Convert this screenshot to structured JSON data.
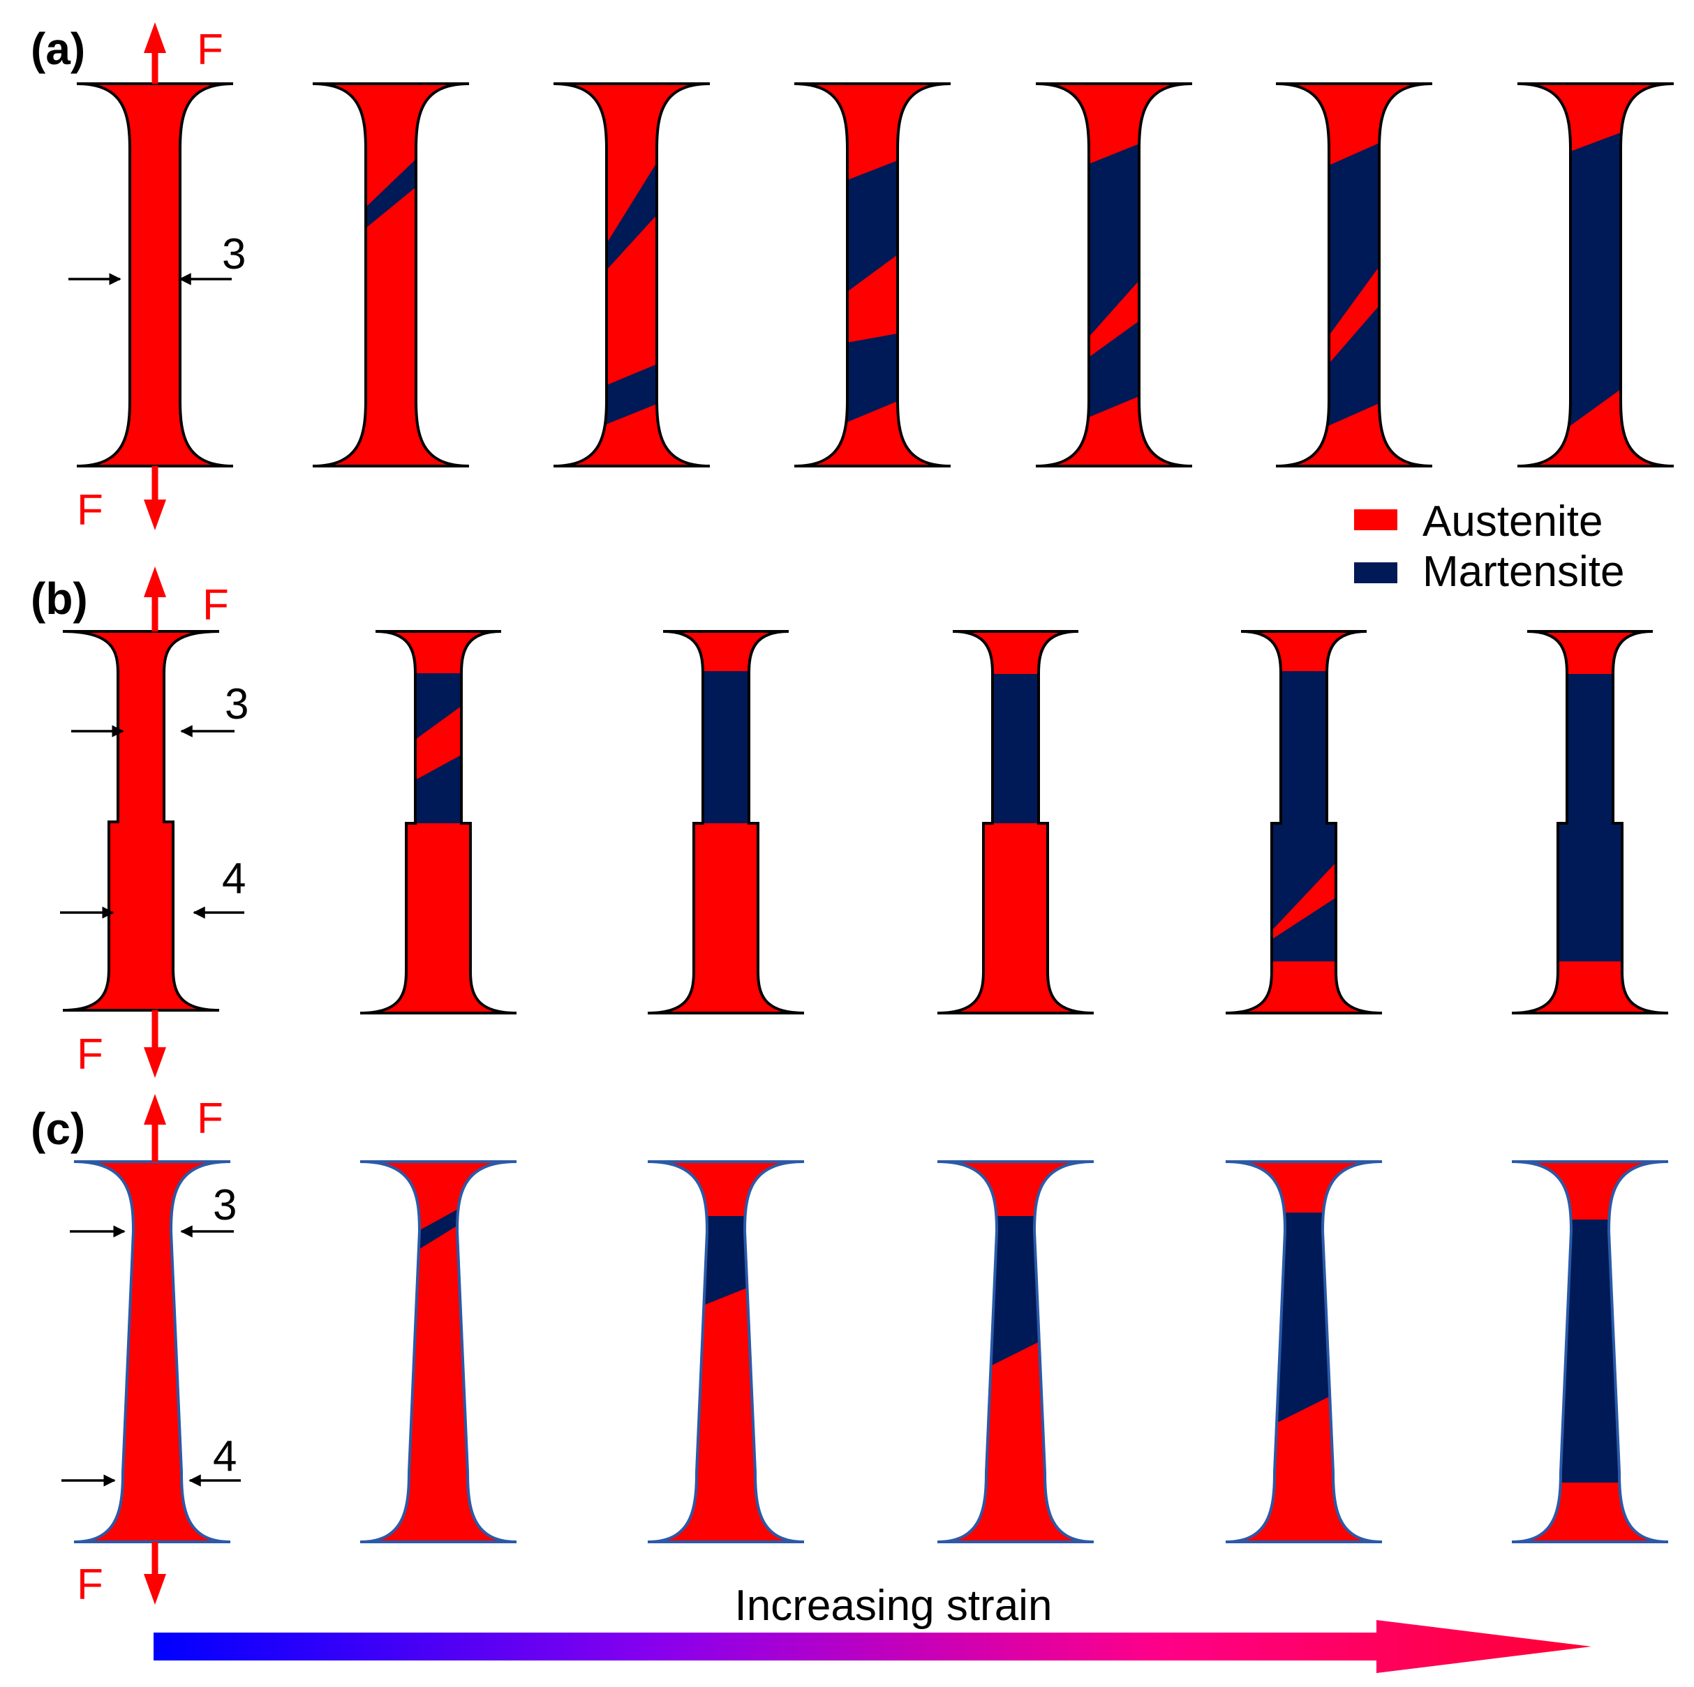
{
  "panels": [
    {
      "label": "(a)",
      "force": "F",
      "dims": [
        "3"
      ]
    },
    {
      "label": "(b)",
      "force": "F",
      "dims": [
        "3",
        "4"
      ]
    },
    {
      "label": "(c)",
      "force": "F",
      "dims": [
        "3",
        "4"
      ]
    }
  ],
  "legend": {
    "austenite": {
      "label": "Austenite",
      "color": "#ff0000"
    },
    "martensite": {
      "label": "Martensite",
      "color": "#001a57"
    }
  },
  "strain_arrow": {
    "label": "Increasing strain",
    "gradient": [
      "#0000ff",
      "#8800ee",
      "#ff0088",
      "#ff0033"
    ]
  },
  "colors": {
    "austenite": "#ff0000",
    "martensite": "#001a57",
    "outline_a_b": "#000000",
    "outline_c": "#2a5aa8"
  }
}
